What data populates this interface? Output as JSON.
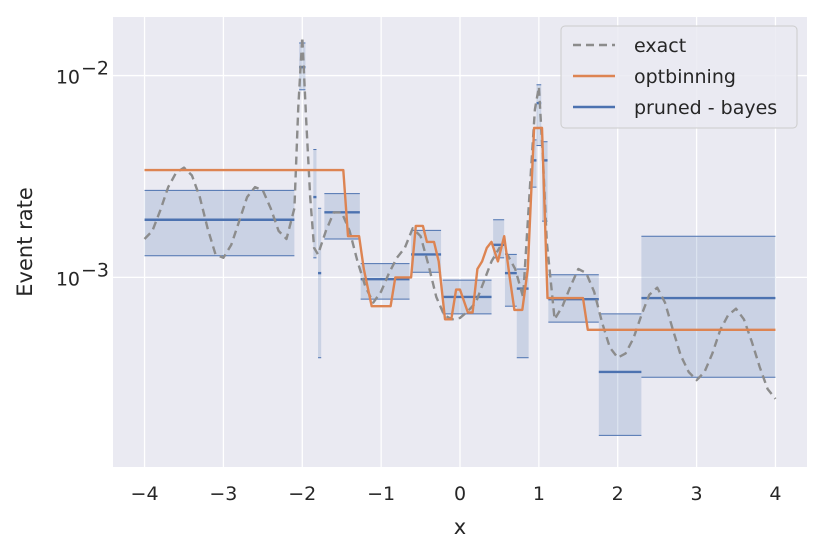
{
  "chart_data": {
    "type": "line",
    "xlabel": "x",
    "ylabel": "Event rate",
    "xlim": [
      -4.4,
      4.4
    ],
    "ylim": [
      0.000115,
      0.0195
    ],
    "yscale": "log",
    "grid": true,
    "legend_position": "top-right",
    "x_ticks": [
      {
        "value": -4,
        "label": "−4"
      },
      {
        "value": -3,
        "label": "−3"
      },
      {
        "value": -2,
        "label": "−2"
      },
      {
        "value": -1,
        "label": "−1"
      },
      {
        "value": 0,
        "label": "0"
      },
      {
        "value": 1,
        "label": "1"
      },
      {
        "value": 2,
        "label": "2"
      },
      {
        "value": 3,
        "label": "3"
      },
      {
        "value": 4,
        "label": "4"
      }
    ],
    "y_ticks": [
      {
        "value": 0.001,
        "base": "10",
        "exponent": "−3"
      },
      {
        "value": 0.01,
        "base": "10",
        "exponent": "−2"
      }
    ],
    "series": [
      {
        "name": "exact",
        "color": "#8c8c8c",
        "style": "dashed",
        "x": [
          -4.0,
          -3.9,
          -3.8,
          -3.7,
          -3.6,
          -3.5,
          -3.4,
          -3.3,
          -3.2,
          -3.1,
          -3.0,
          -2.9,
          -2.8,
          -2.7,
          -2.6,
          -2.5,
          -2.4,
          -2.3,
          -2.2,
          -2.1,
          -2.05,
          -2.0,
          -1.95,
          -1.9,
          -1.85,
          -1.8,
          -1.7,
          -1.6,
          -1.5,
          -1.4,
          -1.3,
          -1.2,
          -1.1,
          -1.0,
          -0.9,
          -0.8,
          -0.7,
          -0.6,
          -0.5,
          -0.4,
          -0.3,
          -0.2,
          -0.1,
          0.0,
          0.1,
          0.2,
          0.3,
          0.4,
          0.5,
          0.6,
          0.7,
          0.8,
          0.9,
          0.95,
          1.0,
          1.05,
          1.1,
          1.2,
          1.3,
          1.4,
          1.5,
          1.6,
          1.7,
          1.8,
          1.9,
          2.0,
          2.1,
          2.2,
          2.3,
          2.4,
          2.5,
          2.6,
          2.7,
          2.8,
          2.9,
          3.0,
          3.1,
          3.2,
          3.3,
          3.4,
          3.5,
          3.6,
          3.7,
          3.8,
          3.9,
          4.0
        ],
        "y": [
          0.00155,
          0.0017,
          0.00215,
          0.0028,
          0.0033,
          0.0035,
          0.0032,
          0.0025,
          0.00175,
          0.0013,
          0.00125,
          0.00145,
          0.0019,
          0.0025,
          0.0028,
          0.0027,
          0.0022,
          0.0017,
          0.00155,
          0.0022,
          0.007,
          0.0155,
          0.006,
          0.0025,
          0.0014,
          0.0013,
          0.0017,
          0.0021,
          0.0021,
          0.0017,
          0.0012,
          0.0009,
          0.00075,
          0.00085,
          0.00105,
          0.00125,
          0.0014,
          0.00175,
          0.0016,
          0.00115,
          0.0008,
          0.00065,
          0.00062,
          0.00063,
          0.00068,
          0.00075,
          0.00095,
          0.0012,
          0.0014,
          0.0013,
          0.0011,
          0.0008,
          0.0034,
          0.0068,
          0.0088,
          0.004,
          0.0015,
          0.00062,
          0.00072,
          0.0009,
          0.0011,
          0.00105,
          0.00085,
          0.0006,
          0.00045,
          0.0004,
          0.00042,
          0.0005,
          0.00065,
          0.00082,
          0.00089,
          0.00075,
          0.00055,
          0.00041,
          0.00034,
          0.00031,
          0.00034,
          0.00042,
          0.00055,
          0.00065,
          0.0007,
          0.00062,
          0.00048,
          0.00036,
          0.00028,
          0.00025
        ]
      },
      {
        "name": "optbinning",
        "color": "#dd8452",
        "style": "solid",
        "x": [
          -4.0,
          -1.48,
          -1.42,
          -1.28,
          -1.22,
          -1.12,
          -0.88,
          -0.82,
          -0.62,
          -0.56,
          -0.47,
          -0.42,
          -0.33,
          -0.27,
          -0.19,
          -0.11,
          -0.05,
          0.0,
          0.1,
          0.16,
          0.22,
          0.28,
          0.34,
          0.4,
          0.48,
          0.56,
          0.63,
          0.69,
          0.73,
          0.79,
          0.86,
          0.94,
          1.0,
          1.04,
          1.11,
          1.56,
          1.62,
          4.0
        ],
        "y": [
          0.0034,
          0.0034,
          0.0016,
          0.0016,
          0.0011,
          0.00072,
          0.00072,
          0.001,
          0.001,
          0.0018,
          0.0018,
          0.0015,
          0.0015,
          0.0012,
          0.00062,
          0.00062,
          0.00087,
          0.00087,
          0.00067,
          0.00067,
          0.0011,
          0.0012,
          0.0014,
          0.0015,
          0.0012,
          0.0016,
          0.001,
          0.00069,
          0.00069,
          0.00069,
          0.0011,
          0.0055,
          0.0055,
          0.0055,
          0.00079,
          0.00079,
          0.00055,
          0.00055
        ]
      }
    ],
    "bins": {
      "name": "pruned - bayes",
      "color": "#4c72b0",
      "fill_color": "#4c72b0",
      "items": [
        {
          "x0": -4.0,
          "x1": -2.1,
          "lo": 0.00128,
          "mid": 0.00193,
          "hi": 0.0027
        },
        {
          "x0": -2.04,
          "x1": -1.96,
          "lo": 0.0085,
          "mid": 0.011,
          "hi": 0.0145
        },
        {
          "x0": -1.86,
          "x1": -1.82,
          "lo": 0.00125,
          "mid": 0.0025,
          "hi": 0.0043
        },
        {
          "x0": -1.8,
          "x1": -1.76,
          "lo": 0.0004,
          "mid": 0.00105,
          "hi": 0.0022
        },
        {
          "x0": -1.72,
          "x1": -1.27,
          "lo": 0.00155,
          "mid": 0.0021,
          "hi": 0.0026
        },
        {
          "x0": -1.26,
          "x1": -0.64,
          "lo": 0.00078,
          "mid": 0.00098,
          "hi": 0.00117
        },
        {
          "x0": -0.62,
          "x1": -0.24,
          "lo": 0.00106,
          "mid": 0.0013,
          "hi": 0.00171
        },
        {
          "x0": -0.22,
          "x1": 0.4,
          "lo": 0.00066,
          "mid": 0.0008,
          "hi": 0.00097
        },
        {
          "x0": 0.42,
          "x1": 0.56,
          "lo": 0.00125,
          "mid": 0.00145,
          "hi": 0.00193
        },
        {
          "x0": 0.57,
          "x1": 0.72,
          "lo": 0.00072,
          "mid": 0.00105,
          "hi": 0.0013
        },
        {
          "x0": 0.72,
          "x1": 0.87,
          "lo": 0.0004,
          "mid": 0.00088,
          "hi": 0.0011
        },
        {
          "x0": 0.92,
          "x1": 0.97,
          "lo": 0.0028,
          "mid": 0.0038,
          "hi": 0.0048
        },
        {
          "x0": 0.97,
          "x1": 1.03,
          "lo": 0.0045,
          "mid": 0.0073,
          "hi": 0.009
        },
        {
          "x0": 1.04,
          "x1": 1.11,
          "lo": 0.0019,
          "mid": 0.0038,
          "hi": 0.0047
        },
        {
          "x0": 1.12,
          "x1": 1.76,
          "lo": 0.0006,
          "mid": 0.00078,
          "hi": 0.00103
        },
        {
          "x0": 1.76,
          "x1": 2.3,
          "lo": 0.000165,
          "mid": 0.00034,
          "hi": 0.00066
        },
        {
          "x0": 2.3,
          "x1": 4.0,
          "lo": 0.00032,
          "mid": 0.00079,
          "hi": 0.0016
        }
      ]
    },
    "legend": [
      {
        "label": "exact",
        "color": "#8c8c8c",
        "style": "dashed"
      },
      {
        "label": "optbinning",
        "color": "#dd8452",
        "style": "solid"
      },
      {
        "label": "pruned - bayes",
        "color": "#4c72b0",
        "style": "solid"
      }
    ]
  }
}
